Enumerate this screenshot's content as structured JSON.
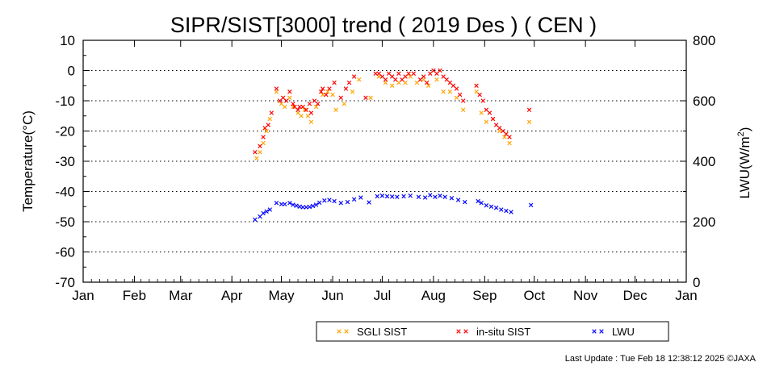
{
  "chart_data": {
    "type": "scatter",
    "title": "SIPR/SIST[3000] trend ( 2019 Des ) ( CEN )",
    "ylabel": "Temperature(°C)",
    "y2label_main": "LWU(W/m",
    "y2label_sup": "2",
    "y2label_end": ")",
    "xlabel": "",
    "ylim": [
      -70,
      10
    ],
    "yticks": [
      10,
      0,
      -10,
      -20,
      -30,
      -40,
      -50,
      -60,
      -70
    ],
    "y2lim": [
      0,
      800
    ],
    "y2ticks": [
      800,
      600,
      400,
      200,
      0
    ],
    "xlim": [
      1,
      366
    ],
    "months": [
      {
        "label": "Jan",
        "day": 1
      },
      {
        "label": "Feb",
        "day": 32
      },
      {
        "label": "Mar",
        "day": 60
      },
      {
        "label": "Apr",
        "day": 91
      },
      {
        "label": "May",
        "day": 121
      },
      {
        "label": "Jun",
        "day": 152
      },
      {
        "label": "Jul",
        "day": 182
      },
      {
        "label": "Aug",
        "day": 213
      },
      {
        "label": "Sep",
        "day": 244
      },
      {
        "label": "Oct",
        "day": 274
      },
      {
        "label": "Nov",
        "day": 305
      },
      {
        "label": "Dec",
        "day": 335
      },
      {
        "label": "Jan",
        "day": 366
      }
    ],
    "grid": "horizontal-dotted",
    "legend": "bottom-right",
    "series": [
      {
        "name": "SGLI SIST",
        "color": "#ffa500",
        "axis": "left",
        "points": [
          [
            106,
            -29
          ],
          [
            108,
            -27
          ],
          [
            110,
            -24
          ],
          [
            112,
            -20
          ],
          [
            114,
            -16
          ],
          [
            118,
            -7
          ],
          [
            121,
            -11
          ],
          [
            123,
            -12
          ],
          [
            126,
            -9
          ],
          [
            128,
            -12
          ],
          [
            131,
            -14
          ],
          [
            133,
            -15
          ],
          [
            135,
            -13
          ],
          [
            137,
            -15
          ],
          [
            139,
            -17
          ],
          [
            142,
            -12
          ],
          [
            146,
            -8
          ],
          [
            149,
            -7
          ],
          [
            152,
            -8
          ],
          [
            154,
            -13
          ],
          [
            159,
            -11
          ],
          [
            164,
            -7
          ],
          [
            168,
            -3
          ],
          [
            175,
            -9
          ],
          [
            180,
            -2
          ],
          [
            184,
            -4
          ],
          [
            188,
            -5
          ],
          [
            192,
            -4
          ],
          [
            196,
            -4
          ],
          [
            199,
            -2
          ],
          [
            203,
            -4
          ],
          [
            207,
            -3
          ],
          [
            210,
            -5
          ],
          [
            215,
            -3
          ],
          [
            219,
            -7
          ],
          [
            223,
            -7
          ],
          [
            227,
            -9
          ],
          [
            231,
            -13
          ],
          [
            239,
            -7
          ],
          [
            242,
            -14
          ],
          [
            245,
            -17
          ],
          [
            249,
            -16
          ],
          [
            253,
            -20
          ],
          [
            256,
            -22
          ],
          [
            259,
            -24
          ],
          [
            271,
            -17
          ]
        ]
      },
      {
        "name": "in-situ SIST",
        "color": "#ff0000",
        "axis": "left",
        "points": [
          [
            105,
            -27
          ],
          [
            108,
            -25
          ],
          [
            110,
            -22
          ],
          [
            111,
            -19
          ],
          [
            113,
            -18
          ],
          [
            115,
            -14
          ],
          [
            118,
            -6
          ],
          [
            120,
            -10
          ],
          [
            122,
            -9
          ],
          [
            124,
            -10
          ],
          [
            126,
            -7
          ],
          [
            128,
            -11
          ],
          [
            129,
            -12
          ],
          [
            131,
            -13
          ],
          [
            132,
            -12
          ],
          [
            134,
            -12
          ],
          [
            136,
            -13
          ],
          [
            138,
            -11
          ],
          [
            139,
            -14
          ],
          [
            141,
            -10
          ],
          [
            143,
            -11
          ],
          [
            145,
            -7
          ],
          [
            146,
            -6
          ],
          [
            148,
            -8
          ],
          [
            150,
            -6
          ],
          [
            153,
            -4
          ],
          [
            157,
            -9
          ],
          [
            160,
            -6
          ],
          [
            162,
            -4
          ],
          [
            165,
            -2
          ],
          [
            172,
            -9
          ],
          [
            178,
            -1
          ],
          [
            180,
            -1
          ],
          [
            182,
            -2
          ],
          [
            184,
            -3
          ],
          [
            186,
            -1
          ],
          [
            188,
            -2
          ],
          [
            190,
            -3
          ],
          [
            192,
            -1
          ],
          [
            194,
            -3
          ],
          [
            196,
            -2
          ],
          [
            198,
            -1
          ],
          [
            201,
            -1
          ],
          [
            205,
            -3
          ],
          [
            207,
            -2
          ],
          [
            209,
            -4
          ],
          [
            211,
            -1
          ],
          [
            213,
            0
          ],
          [
            215,
            -1
          ],
          [
            217,
            0
          ],
          [
            219,
            -2
          ],
          [
            221,
            -3
          ],
          [
            223,
            -4
          ],
          [
            225,
            -5
          ],
          [
            227,
            -6
          ],
          [
            229,
            -8
          ],
          [
            231,
            -10
          ],
          [
            239,
            -5
          ],
          [
            241,
            -8
          ],
          [
            243,
            -10
          ],
          [
            245,
            -13
          ],
          [
            247,
            -14
          ],
          [
            249,
            -16
          ],
          [
            251,
            -18
          ],
          [
            253,
            -19
          ],
          [
            255,
            -20
          ],
          [
            257,
            -21
          ],
          [
            259,
            -22
          ],
          [
            271,
            -13
          ]
        ]
      },
      {
        "name": "LWU",
        "color": "#0000ff",
        "axis": "right",
        "points": [
          [
            105,
            207
          ],
          [
            108,
            217
          ],
          [
            110,
            228
          ],
          [
            112,
            234
          ],
          [
            114,
            240
          ],
          [
            118,
            262
          ],
          [
            121,
            258
          ],
          [
            123,
            258
          ],
          [
            126,
            262
          ],
          [
            128,
            256
          ],
          [
            130,
            253
          ],
          [
            132,
            250
          ],
          [
            134,
            248
          ],
          [
            136,
            248
          ],
          [
            138,
            249
          ],
          [
            140,
            252
          ],
          [
            142,
            256
          ],
          [
            144,
            263
          ],
          [
            147,
            270
          ],
          [
            150,
            272
          ],
          [
            153,
            268
          ],
          [
            157,
            262
          ],
          [
            161,
            265
          ],
          [
            165,
            274
          ],
          [
            169,
            280
          ],
          [
            174,
            264
          ],
          [
            179,
            284
          ],
          [
            182,
            286
          ],
          [
            185,
            284
          ],
          [
            188,
            283
          ],
          [
            191,
            282
          ],
          [
            195,
            284
          ],
          [
            199,
            286
          ],
          [
            204,
            282
          ],
          [
            208,
            280
          ],
          [
            211,
            288
          ],
          [
            214,
            282
          ],
          [
            217,
            286
          ],
          [
            220,
            282
          ],
          [
            224,
            278
          ],
          [
            228,
            272
          ],
          [
            232,
            265
          ],
          [
            240,
            268
          ],
          [
            242,
            262
          ],
          [
            245,
            254
          ],
          [
            248,
            250
          ],
          [
            251,
            246
          ],
          [
            254,
            240
          ],
          [
            257,
            236
          ],
          [
            260,
            232
          ],
          [
            272,
            255
          ]
        ]
      }
    ]
  },
  "footer": {
    "text": "Last Update : Tue Feb 18 12:38:12 2025  ©JAXA"
  }
}
